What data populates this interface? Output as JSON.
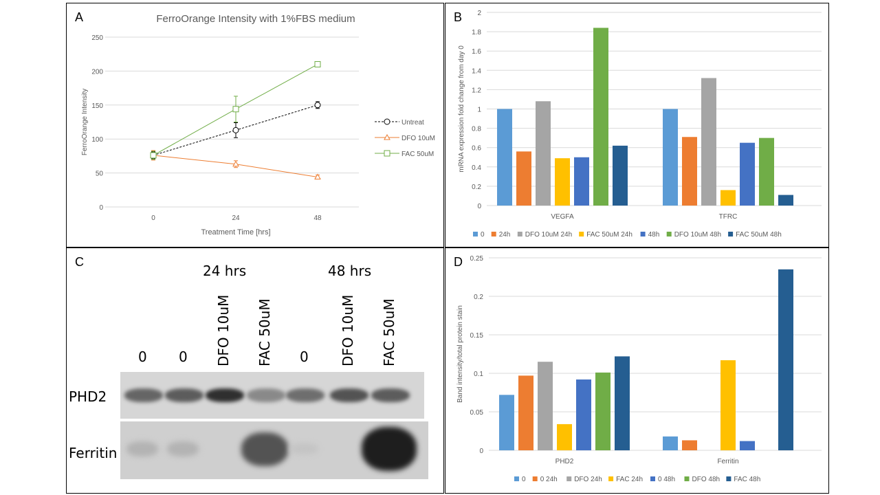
{
  "panel_letters": {
    "a": "A",
    "b": "B",
    "c": "C",
    "d": "D"
  },
  "chart_data": [
    {
      "panel": "A",
      "type": "line",
      "title": "FerroOrange Intensity with 1%FBS medium",
      "xlabel": "Treatment Time [hrs]",
      "ylabel": "FerroOrange Intensity",
      "x": [
        0,
        24,
        48
      ],
      "x_ticks": [
        "0",
        "24",
        "48"
      ],
      "y_ticks": [
        "0",
        "50",
        "100",
        "150",
        "200",
        "250"
      ],
      "ylim": [
        0,
        250
      ],
      "grid": true,
      "legend_position": "right",
      "series": [
        {
          "name": "Untreat",
          "values": [
            76,
            113,
            150
          ],
          "errors": [
            5,
            11,
            5
          ],
          "color": "#000000",
          "dashed": true,
          "marker": "circle"
        },
        {
          "name": "DFO 10uM",
          "values": [
            76,
            63,
            44
          ],
          "errors": [
            7,
            5,
            3
          ],
          "color": "#ED7D31",
          "dashed": false,
          "marker": "triangle"
        },
        {
          "name": "FAC 50uM",
          "values": [
            76,
            144,
            210
          ],
          "errors": [
            6,
            19,
            4
          ],
          "color": "#70AD47",
          "dashed": false,
          "marker": "square"
        }
      ]
    },
    {
      "panel": "B",
      "type": "bar",
      "ylabel": "mRNA expression fold change from day 0",
      "categories": [
        "VEGFA",
        "TFRC"
      ],
      "y_ticks": [
        "0",
        "0.2",
        "0.4",
        "0.6",
        "0.8",
        "1",
        "1.2",
        "1.4",
        "1.6",
        "1.8",
        "2"
      ],
      "ylim": [
        0,
        2
      ],
      "grid": true,
      "legend_position": "bottom",
      "series": [
        {
          "name": "0",
          "values": [
            1.0,
            1.0
          ],
          "color": "#5B9BD5"
        },
        {
          "name": "24h",
          "values": [
            0.56,
            0.71
          ],
          "color": "#ED7D31"
        },
        {
          "name": "DFO 10uM 24h",
          "values": [
            1.08,
            1.32
          ],
          "color": "#A5A5A5"
        },
        {
          "name": "FAC 50uM 24h",
          "values": [
            0.49,
            0.16
          ],
          "color": "#FFC000"
        },
        {
          "name": "48h",
          "values": [
            0.5,
            0.65
          ],
          "color": "#4472C4"
        },
        {
          "name": "DFO 10uM 48h",
          "values": [
            1.84,
            0.7
          ],
          "color": "#70AD47"
        },
        {
          "name": "FAC 50uM 48h",
          "values": [
            0.62,
            0.11
          ],
          "color": "#255E91"
        }
      ]
    },
    {
      "panel": "D",
      "type": "bar",
      "ylabel": "Band intensity/total protein stain",
      "categories": [
        "PHD2",
        "Ferritin"
      ],
      "y_ticks": [
        "0",
        "0.05",
        "0.1",
        "0.15",
        "0.2",
        "0.25"
      ],
      "ylim": [
        0,
        0.25
      ],
      "grid": true,
      "legend_position": "bottom",
      "series": [
        {
          "name": "0",
          "values": [
            0.072,
            0.018
          ],
          "color": "#5B9BD5"
        },
        {
          "name": "0 24h",
          "values": [
            0.097,
            0.013
          ],
          "color": "#ED7D31"
        },
        {
          "name": "DFO 24h",
          "values": [
            0.115,
            0.0
          ],
          "color": "#A5A5A5"
        },
        {
          "name": "FAC 24h",
          "values": [
            0.034,
            0.117
          ],
          "color": "#FFC000"
        },
        {
          "name": "0 48h",
          "values": [
            0.092,
            0.012
          ],
          "color": "#4472C4"
        },
        {
          "name": "DFO 48h",
          "values": [
            0.101,
            0.0
          ],
          "color": "#70AD47"
        },
        {
          "name": "FAC 48h",
          "values": [
            0.122,
            0.235
          ],
          "color": "#255E91"
        }
      ]
    }
  ],
  "blot": {
    "groups": [
      "24 hrs",
      "48 hrs"
    ],
    "lanes": [
      "0",
      "0",
      "DFO 10uM",
      "FAC 50uM",
      "0",
      "DFO 10uM",
      "FAC 50uM"
    ],
    "rows": [
      "PHD2",
      "Ferritin"
    ],
    "phd2_intensity": [
      0.55,
      0.6,
      0.85,
      0.35,
      0.5,
      0.65,
      0.6
    ],
    "ferritin_intensity": [
      0.15,
      0.15,
      0.0,
      0.7,
      0.05,
      0.0,
      1.0
    ]
  }
}
